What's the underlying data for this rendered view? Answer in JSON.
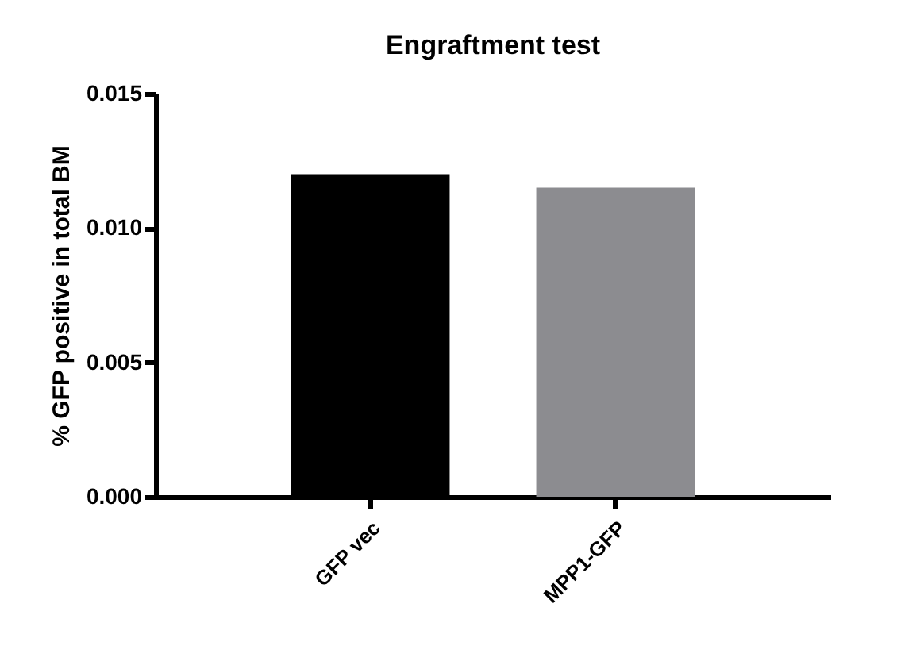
{
  "chart_data": {
    "type": "bar",
    "title": "Engraftment test",
    "ylabel": "% GFP positive in total BM",
    "categories": [
      "GFP vec",
      "MPP1-GFP"
    ],
    "values": [
      0.012,
      0.0115
    ],
    "colors": [
      "#000000",
      "#8c8c90"
    ],
    "ylim": [
      0,
      0.015
    ],
    "yticks": [
      {
        "value": 0,
        "label": "0.000"
      },
      {
        "value": 0.005,
        "label": "0.005"
      },
      {
        "value": 0.01,
        "label": "0.010"
      },
      {
        "value": 0.015,
        "label": "0.015"
      }
    ],
    "grid": false
  }
}
